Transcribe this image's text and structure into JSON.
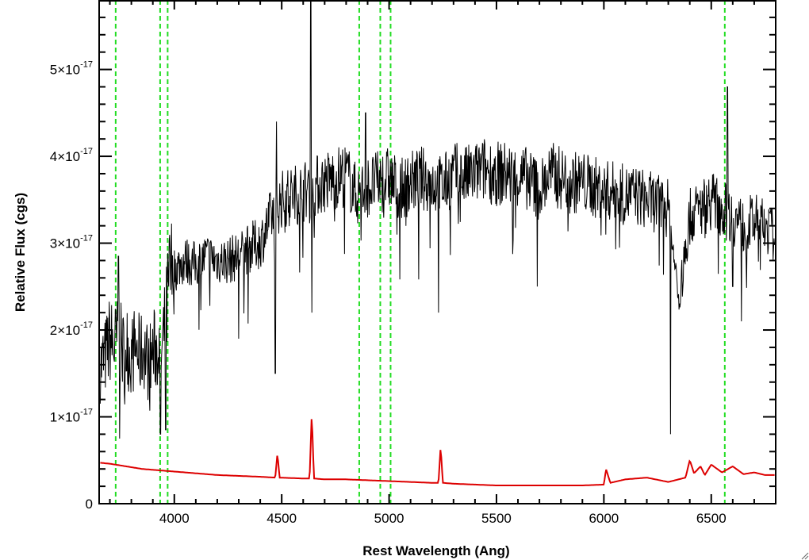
{
  "chart_data": {
    "type": "line",
    "title": "",
    "xlabel": "Rest Wavelength (Ang)",
    "ylabel": "Relative Flux (cgs)",
    "xlim": [
      3650,
      6800
    ],
    "ylim": [
      0,
      5.8e-17
    ],
    "xticks": [
      {
        "value": 4000,
        "label": "4000"
      },
      {
        "value": 4500,
        "label": "4500"
      },
      {
        "value": 5000,
        "label": "5000"
      },
      {
        "value": 5500,
        "label": "5500"
      },
      {
        "value": 6000,
        "label": "6000"
      },
      {
        "value": 6500,
        "label": "6500"
      }
    ],
    "yticks": [
      {
        "value": 0,
        "mantissa": "0",
        "exponent": ""
      },
      {
        "value": 1e-17,
        "mantissa": "1×10",
        "exponent": "-17"
      },
      {
        "value": 2e-17,
        "mantissa": "2×10",
        "exponent": "-17"
      },
      {
        "value": 3e-17,
        "mantissa": "3×10",
        "exponent": "-17"
      },
      {
        "value": 4e-17,
        "mantissa": "4×10",
        "exponent": "-17"
      },
      {
        "value": 5e-17,
        "mantissa": "5×10",
        "exponent": "-17"
      }
    ],
    "grid": false,
    "reference_lines": {
      "color": "#22dd22",
      "style": "dashed",
      "x": [
        3727,
        3934,
        3969,
        4861,
        4959,
        5007,
        6563
      ]
    },
    "series": [
      {
        "color": "#000000",
        "x": [
          3660,
          3680,
          3700,
          3720,
          3740,
          3760,
          3780,
          3800,
          3820,
          3840,
          3860,
          3880,
          3900,
          3920,
          3940,
          3960,
          3980,
          4000,
          4050,
          4100,
          4150,
          4200,
          4250,
          4300,
          4350,
          4400,
          4450,
          4500,
          4550,
          4600,
          4650,
          4700,
          4750,
          4800,
          4850,
          4900,
          4950,
          5000,
          5050,
          5100,
          5150,
          5200,
          5250,
          5300,
          5350,
          5400,
          5450,
          5500,
          5550,
          5600,
          5650,
          5700,
          5750,
          5800,
          5850,
          5900,
          5950,
          6000,
          6050,
          6100,
          6150,
          6200,
          6250,
          6300,
          6350,
          6400,
          6450,
          6500,
          6550,
          6600,
          6650,
          6700,
          6750,
          6790
        ],
        "y": [
          1.6e-17,
          1.7e-17,
          1.9e-17,
          1.8e-17,
          1.9e-17,
          1.75e-17,
          1.8e-17,
          1.7e-17,
          1.8e-17,
          1.7e-17,
          1.8e-17,
          1.6e-17,
          1.75e-17,
          1.8e-17,
          1.7e-17,
          2.1e-17,
          2.6e-17,
          2.7e-17,
          2.8e-17,
          2.75e-17,
          2.85e-17,
          2.8e-17,
          2.8e-17,
          2.85e-17,
          2.95e-17,
          3e-17,
          3.3e-17,
          3.5e-17,
          3.55e-17,
          3.6e-17,
          3.65e-17,
          3.7e-17,
          3.75e-17,
          3.8e-17,
          3.55e-17,
          3.65e-17,
          3.7e-17,
          3.75e-17,
          3.6e-17,
          3.7e-17,
          3.75e-17,
          3.7e-17,
          3.65e-17,
          3.8e-17,
          3.75e-17,
          3.8e-17,
          3.85e-17,
          3.8e-17,
          3.8e-17,
          3.75e-17,
          3.75e-17,
          3.6e-17,
          3.8e-17,
          3.75e-17,
          3.7e-17,
          3.7e-17,
          3.65e-17,
          3.6e-17,
          3.6e-17,
          3.55e-17,
          3.55e-17,
          3.5e-17,
          3.45e-17,
          3.4e-17,
          2.3e-17,
          3.3e-17,
          3.4e-17,
          3.5e-17,
          3.4e-17,
          3.3e-17,
          3.2e-17,
          3.25e-17,
          3.2e-17,
          3.1e-17
        ]
      },
      {
        "color": "#dd0000",
        "x": [
          3660,
          3700,
          3750,
          3800,
          3850,
          3900,
          3950,
          4000,
          4100,
          4200,
          4300,
          4400,
          4470,
          4480,
          4490,
          4600,
          4630,
          4640,
          4650,
          4700,
          4800,
          4900,
          5000,
          5100,
          5200,
          5230,
          5240,
          5250,
          5300,
          5400,
          5500,
          5600,
          5700,
          5800,
          5900,
          6000,
          6010,
          6030,
          6100,
          6200,
          6300,
          6380,
          6400,
          6420,
          6450,
          6470,
          6500,
          6550,
          6600,
          6650,
          6700,
          6750,
          6790
        ],
        "y": [
          4.7e-18,
          4.6e-18,
          4.4e-18,
          4.2e-18,
          4e-18,
          3.9e-18,
          3.8e-18,
          3.7e-18,
          3.5e-18,
          3.3e-18,
          3.2e-18,
          3.1e-18,
          3e-18,
          5.8e-18,
          3e-18,
          2.9e-18,
          2.9e-18,
          1.05e-17,
          2.9e-18,
          2.8e-18,
          2.8e-18,
          2.7e-18,
          2.6e-18,
          2.5e-18,
          2.4e-18,
          2.4e-18,
          6.6e-18,
          2.4e-18,
          2.3e-18,
          2.2e-18,
          2.1e-18,
          2.1e-18,
          2.1e-18,
          2.1e-18,
          2.1e-18,
          2.2e-18,
          4e-18,
          2.4e-18,
          2.8e-18,
          3e-18,
          2.5e-18,
          3e-18,
          5e-18,
          3.5e-18,
          4.3e-18,
          3.3e-18,
          4.5e-18,
          3.6e-18,
          4.3e-18,
          3.4e-18,
          3.6e-18,
          3.3e-18,
          3.3e-18
        ]
      }
    ],
    "peaks": [
      {
        "series": 0,
        "x": 3740,
        "y": 2.85e-17
      },
      {
        "series": 0,
        "x": 3745,
        "y": 7.5e-18
      },
      {
        "series": 0,
        "x": 3935,
        "y": 8e-18
      },
      {
        "series": 0,
        "x": 3960,
        "y": 8.5e-18
      },
      {
        "series": 0,
        "x": 4300,
        "y": 1.9e-17
      },
      {
        "series": 0,
        "x": 4470,
        "y": 1.5e-17
      },
      {
        "series": 0,
        "x": 4475,
        "y": 4.4e-17
      },
      {
        "series": 0,
        "x": 4635,
        "y": 5.8e-17
      },
      {
        "series": 0,
        "x": 4640,
        "y": 2.2e-17
      },
      {
        "series": 0,
        "x": 4890,
        "y": 4.5e-17
      },
      {
        "series": 0,
        "x": 5230,
        "y": 2.2e-17
      },
      {
        "series": 0,
        "x": 5690,
        "y": 2.5e-17
      },
      {
        "series": 0,
        "x": 6310,
        "y": 8e-18
      },
      {
        "series": 0,
        "x": 6330,
        "y": 2.7e-17
      },
      {
        "series": 0,
        "x": 6575,
        "y": 4.8e-17
      },
      {
        "series": 0,
        "x": 6600,
        "y": 2.5e-17
      },
      {
        "series": 0,
        "x": 6640,
        "y": 2.1e-17
      }
    ]
  }
}
